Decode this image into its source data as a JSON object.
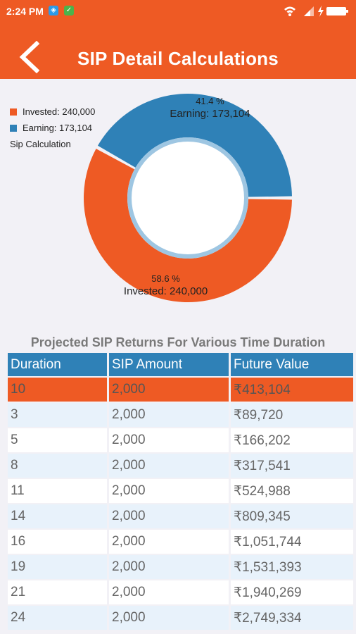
{
  "status_bar": {
    "time": "2:24 PM",
    "icons": [
      "notification-icon-blue",
      "notification-icon-green",
      "wifi-icon",
      "signal-icon",
      "battery-charging-icon"
    ]
  },
  "header": {
    "title": "SIP Detail Calculations",
    "back_icon": "chevron-left-icon"
  },
  "colors": {
    "accent": "#ee5a24",
    "earning": "#2f81b7",
    "highlight_row": "#ee5a24",
    "alt_row": "#e8f2fb"
  },
  "legend": {
    "invested_label": "Invested: 240,000",
    "earning_label": "Earning: 173,104",
    "description": "Sip Calculation"
  },
  "chart_data": {
    "type": "pie",
    "donut": true,
    "title": "",
    "description": "Sip Calculation",
    "series": [
      {
        "name": "Invested",
        "value": 240000,
        "percent": 58.6,
        "percent_label": "58.6 %",
        "value_label": "Invested: 240,000",
        "color": "#ee5a24"
      },
      {
        "name": "Earning",
        "value": 173104,
        "percent": 41.4,
        "percent_label": "41.4 %",
        "value_label": "Earning: 173,104",
        "color": "#2f81b7"
      }
    ],
    "legend_position": "top-left"
  },
  "table": {
    "title": "Projected SIP Returns For Various Time Duration",
    "headers": [
      "Duration",
      "SIP Amount",
      "Future Value"
    ],
    "rows": [
      [
        "10",
        "2,000",
        "₹413,104"
      ],
      [
        "3",
        "2,000",
        "₹89,720"
      ],
      [
        "5",
        "2,000",
        "₹166,202"
      ],
      [
        "8",
        "2,000",
        "₹317,541"
      ],
      [
        "11",
        "2,000",
        "₹524,988"
      ],
      [
        "14",
        "2,000",
        "₹809,345"
      ],
      [
        "16",
        "2,000",
        "₹1,051,744"
      ],
      [
        "19",
        "2,000",
        "₹1,531,393"
      ],
      [
        "21",
        "2,000",
        "₹1,940,269"
      ],
      [
        "24",
        "2,000",
        "₹2,749,334"
      ]
    ],
    "highlighted_row": 0
  }
}
